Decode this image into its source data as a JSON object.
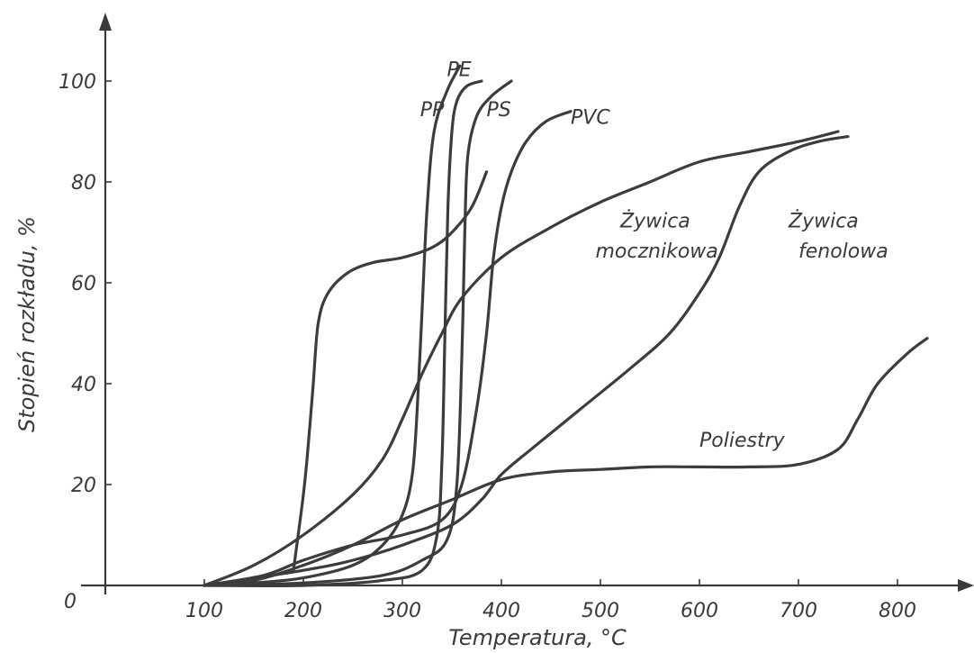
{
  "chart_data": {
    "type": "line",
    "xlabel": "Temperatura, °C",
    "ylabel": "Stopień rozkładu, %",
    "origin_label": "0",
    "xlim": [
      0,
      840
    ],
    "ylim": [
      0,
      108
    ],
    "x_ticks": [
      100,
      200,
      300,
      400,
      500,
      600,
      700,
      800
    ],
    "y_ticks": [
      20,
      40,
      60,
      80,
      100
    ],
    "grid": false,
    "series": [
      {
        "name": "PE",
        "points": [
          [
            100,
            0
          ],
          [
            200,
            0
          ],
          [
            280,
            1
          ],
          [
            320,
            3
          ],
          [
            335,
            10
          ],
          [
            340,
            25
          ],
          [
            343,
            50
          ],
          [
            346,
            75
          ],
          [
            350,
            90
          ],
          [
            355,
            96
          ],
          [
            365,
            99
          ],
          [
            380,
            100
          ]
        ]
      },
      {
        "name": "PP",
        "points": [
          [
            100,
            0
          ],
          [
            150,
            0.5
          ],
          [
            200,
            1.5
          ],
          [
            250,
            4
          ],
          [
            280,
            8
          ],
          [
            300,
            14
          ],
          [
            310,
            22
          ],
          [
            315,
            35
          ],
          [
            320,
            55
          ],
          [
            325,
            75
          ],
          [
            332,
            90
          ],
          [
            345,
            98
          ],
          [
            358,
            103
          ]
        ]
      },
      {
        "name": "PS",
        "points": [
          [
            100,
            0
          ],
          [
            200,
            0.5
          ],
          [
            280,
            2
          ],
          [
            320,
            5
          ],
          [
            345,
            9
          ],
          [
            355,
            20
          ],
          [
            360,
            45
          ],
          [
            363,
            70
          ],
          [
            366,
            85
          ],
          [
            375,
            93
          ],
          [
            390,
            97
          ],
          [
            410,
            100
          ]
        ]
      },
      {
        "name": "PVC",
        "points": [
          [
            100,
            0
          ],
          [
            160,
            2
          ],
          [
            200,
            5
          ],
          [
            250,
            8
          ],
          [
            300,
            10
          ],
          [
            340,
            13
          ],
          [
            360,
            20
          ],
          [
            375,
            35
          ],
          [
            385,
            50
          ],
          [
            392,
            65
          ],
          [
            400,
            75
          ],
          [
            410,
            82
          ],
          [
            425,
            88
          ],
          [
            445,
            92
          ],
          [
            470,
            94
          ]
        ]
      },
      {
        "name": "Żywica mocznikowa",
        "points": [
          [
            100,
            0
          ],
          [
            150,
            4
          ],
          [
            200,
            10
          ],
          [
            250,
            18
          ],
          [
            280,
            25
          ],
          [
            300,
            33
          ],
          [
            320,
            42
          ],
          [
            340,
            50
          ],
          [
            360,
            57
          ],
          [
            400,
            65
          ],
          [
            450,
            71
          ],
          [
            500,
            76
          ],
          [
            550,
            80
          ],
          [
            600,
            84
          ],
          [
            650,
            86
          ],
          [
            700,
            88
          ],
          [
            740,
            90
          ]
        ]
      },
      {
        "name": "Żywica fenolowa",
        "points": [
          [
            100,
            0
          ],
          [
            200,
            3
          ],
          [
            250,
            5
          ],
          [
            300,
            8
          ],
          [
            350,
            12
          ],
          [
            380,
            17
          ],
          [
            400,
            22
          ],
          [
            430,
            27
          ],
          [
            480,
            35
          ],
          [
            530,
            43
          ],
          [
            570,
            50
          ],
          [
            600,
            58
          ],
          [
            620,
            65
          ],
          [
            640,
            75
          ],
          [
            660,
            82
          ],
          [
            690,
            86
          ],
          [
            720,
            88
          ],
          [
            750,
            89
          ]
        ]
      },
      {
        "name": "Poliestry",
        "points": [
          [
            100,
            0
          ],
          [
            150,
            1
          ],
          [
            200,
            4
          ],
          [
            250,
            8
          ],
          [
            300,
            13
          ],
          [
            350,
            17
          ],
          [
            400,
            21
          ],
          [
            450,
            22.5
          ],
          [
            500,
            23
          ],
          [
            550,
            23.5
          ],
          [
            600,
            23.5
          ],
          [
            650,
            23.5
          ],
          [
            700,
            24
          ],
          [
            740,
            27
          ],
          [
            760,
            33
          ],
          [
            780,
            40
          ],
          [
            810,
            46
          ],
          [
            830,
            49
          ]
        ]
      },
      {
        "name": "",
        "points": [
          [
            190,
            3
          ],
          [
            200,
            18
          ],
          [
            205,
            28
          ],
          [
            210,
            40
          ],
          [
            215,
            52
          ],
          [
            225,
            58
          ],
          [
            245,
            62
          ],
          [
            270,
            64
          ],
          [
            300,
            65
          ],
          [
            330,
            67
          ],
          [
            350,
            70
          ],
          [
            370,
            75
          ],
          [
            385,
            82
          ]
        ]
      }
    ],
    "labels": [
      {
        "text": "PE",
        "x": 345,
        "y": 101
      },
      {
        "text": "PP",
        "x": 318,
        "y": 93
      },
      {
        "text": "PS",
        "x": 385,
        "y": 93
      },
      {
        "text": "PVC",
        "x": 470,
        "y": 91.5
      },
      {
        "text": "Żywica",
        "x": 520,
        "y": 71
      },
      {
        "text": "mocznikowa",
        "x": 495,
        "y": 65
      },
      {
        "text": "Żywica",
        "x": 690,
        "y": 71
      },
      {
        "text": "fenolowa",
        "x": 700,
        "y": 65
      },
      {
        "text": "Poliestry",
        "x": 600,
        "y": 27.5
      }
    ]
  }
}
